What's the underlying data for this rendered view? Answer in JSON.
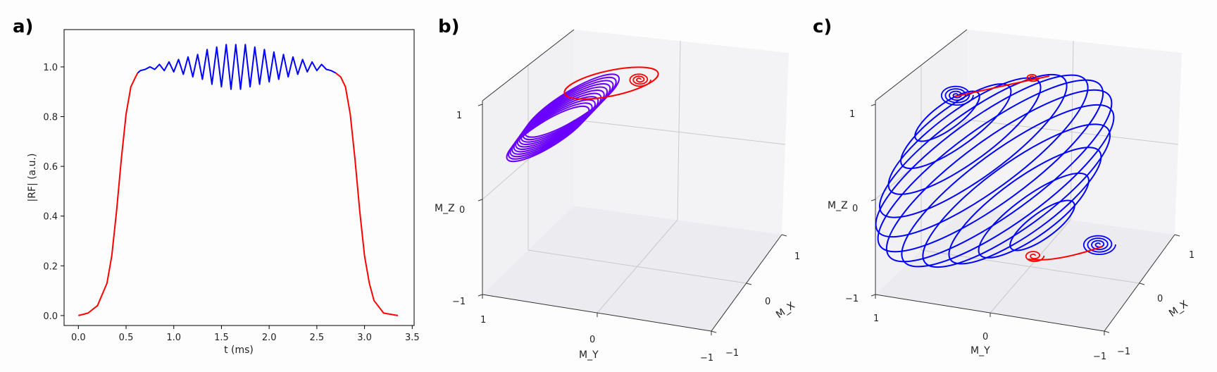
{
  "chart_data": [
    {
      "panel_label": "a)",
      "type": "line",
      "xlabel": "t (ms)",
      "ylabel": "|RF| (a.u.)",
      "xlim": [
        -0.15,
        3.52
      ],
      "ylim": [
        -0.04,
        1.15
      ],
      "xticks": [
        0.0,
        0.5,
        1.0,
        1.5,
        2.0,
        2.5,
        3.0,
        3.5
      ],
      "yticks": [
        0.0,
        0.2,
        0.4,
        0.6,
        0.8,
        1.0
      ],
      "xtick_labels": [
        "0.0",
        "0.5",
        "1.0",
        "1.5",
        "2.0",
        "2.5",
        "3.0",
        "3.5"
      ],
      "ytick_labels": [
        "0.0",
        "0.2",
        "0.4",
        "0.6",
        "0.8",
        "1.0"
      ],
      "grid": false,
      "series_colors": [
        "#ff0000",
        "#0000ff",
        "#ff0000"
      ],
      "series": [
        {
          "x": [
            0.0,
            0.1,
            0.2,
            0.3,
            0.35,
            0.4,
            0.45,
            0.5,
            0.55,
            0.6,
            0.62
          ],
          "values": [
            0.0,
            0.01,
            0.04,
            0.13,
            0.24,
            0.42,
            0.63,
            0.81,
            0.92,
            0.96,
            0.975
          ]
        },
        {
          "x": [
            0.62,
            0.65,
            0.7,
            0.75,
            0.8,
            0.85,
            0.9,
            0.95,
            1.0,
            1.05,
            1.1,
            1.15,
            1.2,
            1.25,
            1.3,
            1.35,
            1.4,
            1.45,
            1.5,
            1.55,
            1.6,
            1.65,
            1.7,
            1.75,
            1.8,
            1.85,
            1.9,
            1.95,
            2.0,
            2.05,
            2.1,
            2.15,
            2.2,
            2.25,
            2.3,
            2.35,
            2.4,
            2.45,
            2.5,
            2.55,
            2.6,
            2.65,
            2.7
          ],
          "values": [
            0.975,
            0.985,
            0.99,
            1.0,
            0.99,
            1.01,
            0.985,
            1.02,
            0.98,
            1.03,
            0.97,
            1.04,
            0.96,
            1.05,
            0.95,
            1.07,
            0.93,
            1.08,
            0.92,
            1.09,
            0.91,
            1.09,
            0.91,
            1.09,
            0.92,
            1.08,
            0.93,
            1.07,
            0.94,
            1.06,
            0.95,
            1.05,
            0.96,
            1.04,
            0.97,
            1.03,
            0.98,
            1.02,
            0.985,
            1.01,
            0.99,
            0.985,
            0.975
          ]
        },
        {
          "x": [
            2.7,
            2.75,
            2.8,
            2.85,
            2.9,
            2.95,
            3.0,
            3.05,
            3.1,
            3.2,
            3.35
          ],
          "values": [
            0.975,
            0.96,
            0.92,
            0.81,
            0.63,
            0.42,
            0.24,
            0.13,
            0.06,
            0.01,
            0.0
          ]
        }
      ]
    },
    {
      "panel_label": "b)",
      "type": "3d-line",
      "xlabel": "M_X",
      "ylabel": "M_Y",
      "zlabel": "M_Z",
      "xlim": [
        -1,
        1
      ],
      "ylim": [
        -1,
        1
      ],
      "zlim": [
        -1,
        1
      ],
      "xtick_labels": [
        "1",
        "0",
        "−1"
      ],
      "ytick_labels": [
        "1",
        "0",
        "−1"
      ],
      "ztick_labels": [
        "1",
        "0",
        "−1"
      ],
      "trajectory": "magnetization rotating from near +Z; red outer loop with tight red spiral near the top, then repeated purple/blue ellipses clustered in the upper-left of the cube",
      "series_colors": [
        "#ff0000",
        "#6a00ff"
      ]
    },
    {
      "panel_label": "c)",
      "type": "3d-line",
      "xlabel": "M_X",
      "ylabel": "M_Y",
      "zlabel": "M_Z",
      "xlim": [
        -1,
        1
      ],
      "ylim": [
        -1,
        1
      ],
      "zlim": [
        -1,
        1
      ],
      "xtick_labels": [
        "1",
        "0",
        "−1"
      ],
      "ytick_labels": [
        "1",
        "0",
        "−1"
      ],
      "ztick_labels": [
        "1",
        "0",
        "−1"
      ],
      "trajectory": "magnetization sweeping over a sphere in large tilted blue ellipses from a spiral near the top-left to a spiral near the bottom-right, with red segments at both ends",
      "series_colors": [
        "#0000ff",
        "#ff0000"
      ]
    }
  ]
}
